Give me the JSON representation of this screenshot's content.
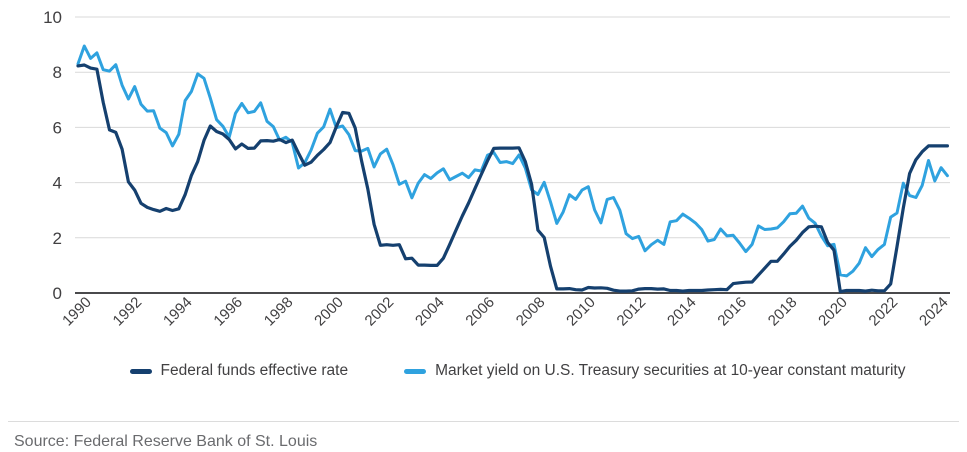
{
  "chart_data": {
    "type": "line",
    "title": "",
    "xlabel": "",
    "ylabel": "",
    "ylim": [
      0,
      10
    ],
    "y_ticks": [
      0,
      2,
      4,
      6,
      8,
      10
    ],
    "x_start": 1990,
    "x_step_years": 0.25,
    "x_tick_years": [
      1990,
      1992,
      1994,
      1996,
      1998,
      2000,
      2002,
      2004,
      2006,
      2008,
      2010,
      2012,
      2014,
      2016,
      2018,
      2020,
      2022,
      2024
    ],
    "grid": "horizontal",
    "grid_color": "#d9d9d9",
    "axis_color": "#4a4a4c",
    "legend_position": "bottom",
    "series": [
      {
        "name": "Federal funds effective rate",
        "color": "#15406f",
        "values": [
          8.23,
          8.26,
          8.15,
          8.11,
          6.91,
          5.91,
          5.82,
          5.21,
          4.03,
          3.73,
          3.25,
          3.1,
          3.02,
          2.96,
          3.06,
          2.99,
          3.05,
          3.56,
          4.26,
          4.76,
          5.53,
          6.05,
          5.85,
          5.76,
          5.56,
          5.22,
          5.4,
          5.24,
          5.25,
          5.51,
          5.52,
          5.5,
          5.56,
          5.45,
          5.54,
          5.07,
          4.63,
          4.74,
          4.99,
          5.2,
          5.45,
          6.02,
          6.54,
          6.51,
          5.98,
          4.8,
          3.77,
          2.49,
          1.73,
          1.75,
          1.73,
          1.75,
          1.24,
          1.26,
          1.01,
          1.01,
          1.0,
          1.0,
          1.26,
          1.76,
          2.28,
          2.79,
          3.26,
          3.78,
          4.29,
          4.79,
          5.24,
          5.25,
          5.25,
          5.25,
          5.26,
          4.76,
          3.94,
          2.28,
          2.01,
          0.97,
          0.15,
          0.15,
          0.16,
          0.12,
          0.11,
          0.2,
          0.18,
          0.19,
          0.17,
          0.1,
          0.07,
          0.07,
          0.08,
          0.14,
          0.16,
          0.16,
          0.14,
          0.15,
          0.09,
          0.09,
          0.07,
          0.09,
          0.09,
          0.09,
          0.11,
          0.12,
          0.13,
          0.12,
          0.34,
          0.37,
          0.39,
          0.4,
          0.65,
          0.9,
          1.15,
          1.15,
          1.41,
          1.69,
          1.91,
          2.19,
          2.4,
          2.42,
          2.4,
          1.83,
          1.55,
          0.05,
          0.09,
          0.09,
          0.09,
          0.07,
          0.1,
          0.08,
          0.08,
          0.33,
          1.68,
          3.08,
          4.33,
          4.83,
          5.12,
          5.33,
          5.33,
          5.33,
          5.33
        ]
      },
      {
        "name": "Market yield on U.S. Treasury securities at 10-year constant maturity",
        "color": "#2fa2df",
        "values": [
          8.3,
          8.95,
          8.5,
          8.7,
          8.09,
          8.04,
          8.27,
          7.53,
          7.03,
          7.48,
          6.84,
          6.59,
          6.6,
          5.97,
          5.81,
          5.33,
          5.75,
          6.97,
          7.3,
          7.94,
          7.78,
          7.06,
          6.28,
          6.04,
          5.65,
          6.51,
          6.87,
          6.53,
          6.58,
          6.89,
          6.22,
          6.03,
          5.54,
          5.64,
          5.46,
          4.53,
          4.72,
          5.18,
          5.79,
          6.02,
          6.66,
          5.99,
          6.05,
          5.74,
          5.16,
          5.14,
          5.24,
          4.57,
          5.04,
          5.21,
          4.65,
          3.94,
          4.05,
          3.45,
          3.98,
          4.29,
          4.15,
          4.35,
          4.5,
          4.1,
          4.22,
          4.34,
          4.18,
          4.46,
          4.42,
          4.99,
          5.09,
          4.73,
          4.76,
          4.69,
          5.0,
          4.53,
          3.74,
          3.57,
          4.01,
          3.3,
          2.52,
          2.93,
          3.56,
          3.39,
          3.73,
          3.85,
          3.01,
          2.54,
          3.39,
          3.46,
          3.0,
          2.15,
          1.97,
          2.05,
          1.53,
          1.75,
          1.91,
          1.76,
          2.58,
          2.62,
          2.86,
          2.71,
          2.54,
          2.3,
          1.88,
          1.94,
          2.32,
          2.07,
          2.09,
          1.81,
          1.5,
          1.76,
          2.43,
          2.3,
          2.32,
          2.36,
          2.58,
          2.87,
          2.89,
          3.15,
          2.71,
          2.53,
          2.06,
          1.71,
          1.76,
          0.66,
          0.62,
          0.79,
          1.08,
          1.64,
          1.32,
          1.58,
          1.76,
          2.75,
          2.9,
          3.98,
          3.53,
          3.46,
          3.9,
          4.8,
          4.06,
          4.54,
          4.25
        ]
      }
    ]
  },
  "source": {
    "text": "Source: Federal Reserve Bank of St. Louis"
  }
}
